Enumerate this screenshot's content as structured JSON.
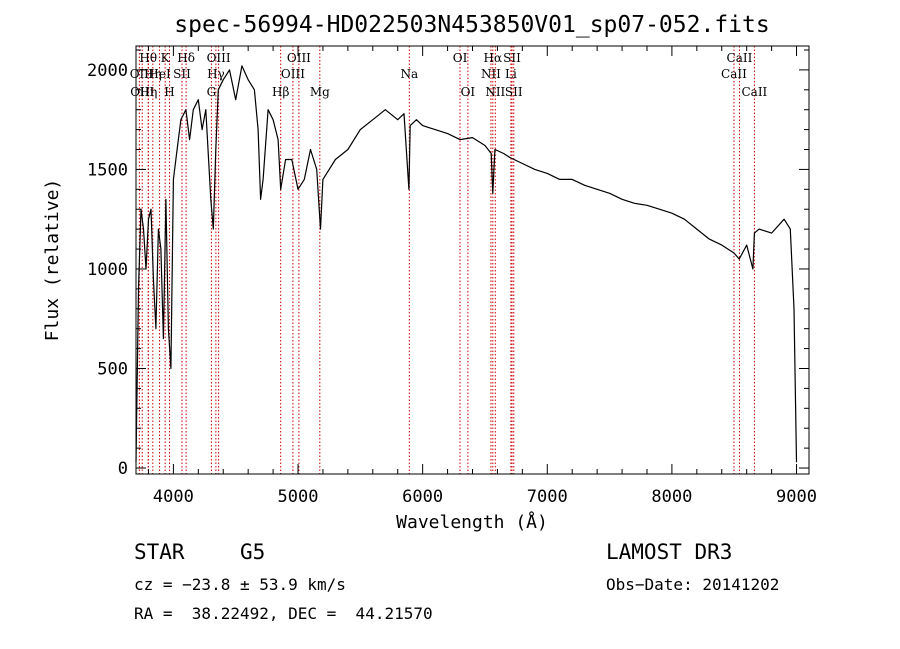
{
  "chart_data": {
    "type": "line",
    "title": "spec-56994-HD022503N453850V01_sp07-052.fits",
    "xlabel": "Wavelength (Å)",
    "ylabel": "Flux (relative)",
    "xlim": [
      3700,
      9100
    ],
    "ylim": [
      -30,
      2120
    ],
    "xticks": [
      4000,
      5000,
      6000,
      7000,
      8000,
      9000
    ],
    "yticks": [
      0,
      500,
      1000,
      1500,
      2000
    ],
    "series": [
      {
        "name": "flux",
        "color": "#000000",
        "x": [
          3700,
          3720,
          3740,
          3760,
          3780,
          3800,
          3820,
          3840,
          3860,
          3880,
          3900,
          3920,
          3940,
          3960,
          3980,
          4000,
          4030,
          4060,
          4100,
          4130,
          4160,
          4200,
          4230,
          4260,
          4300,
          4320,
          4340,
          4360,
          4400,
          4450,
          4500,
          4550,
          4600,
          4650,
          4680,
          4700,
          4720,
          4760,
          4800,
          4840,
          4861,
          4900,
          4950,
          5000,
          5050,
          5100,
          5150,
          5180,
          5200,
          5250,
          5300,
          5400,
          5500,
          5600,
          5700,
          5800,
          5850,
          5890,
          5900,
          5950,
          6000,
          6100,
          6200,
          6300,
          6400,
          6500,
          6550,
          6563,
          6580,
          6650,
          6700,
          6800,
          6900,
          7000,
          7100,
          7200,
          7300,
          7400,
          7500,
          7600,
          7700,
          7800,
          7900,
          8000,
          8100,
          8200,
          8300,
          8400,
          8498,
          8540,
          8600,
          8650,
          8662,
          8700,
          8800,
          8900,
          8950,
          8980,
          9000
        ],
        "values": [
          30,
          900,
          1300,
          1200,
          1000,
          1250,
          1300,
          950,
          700,
          1200,
          1100,
          650,
          1350,
          700,
          500,
          1450,
          1600,
          1750,
          1800,
          1650,
          1800,
          1850,
          1700,
          1800,
          1350,
          1200,
          1600,
          1900,
          1950,
          2000,
          1850,
          2020,
          1950,
          1900,
          1700,
          1350,
          1450,
          1800,
          1750,
          1650,
          1400,
          1550,
          1550,
          1400,
          1450,
          1600,
          1500,
          1200,
          1450,
          1500,
          1550,
          1600,
          1700,
          1750,
          1800,
          1750,
          1780,
          1400,
          1720,
          1750,
          1720,
          1700,
          1680,
          1650,
          1660,
          1620,
          1580,
          1380,
          1600,
          1580,
          1560,
          1530,
          1500,
          1480,
          1450,
          1450,
          1420,
          1400,
          1380,
          1350,
          1330,
          1320,
          1300,
          1280,
          1250,
          1200,
          1150,
          1120,
          1080,
          1050,
          1120,
          1000,
          1180,
          1200,
          1180,
          1250,
          1200,
          800,
          30
        ]
      }
    ],
    "lines": [
      {
        "label": "Hθ",
        "x": 3798,
        "row": 1
      },
      {
        "label": "OII",
        "x": 3727,
        "row": 2
      },
      {
        "label": "Hη",
        "x": 3835,
        "row": 2
      },
      {
        "label": "OIII",
        "x": 3750,
        "row": 3
      },
      {
        "label": "HeI",
        "x": 3889,
        "row": 2
      },
      {
        "label": "Hη",
        "x": 3800,
        "row": 3
      },
      {
        "label": "K",
        "x": 3934,
        "row": 1
      },
      {
        "label": "H",
        "x": 3969,
        "row": 3
      },
      {
        "label": "SII",
        "x": 4069,
        "row": 2
      },
      {
        "label": "Hδ",
        "x": 4102,
        "row": 1
      },
      {
        "label": "OIII",
        "x": 4363,
        "row": 1
      },
      {
        "label": "Hγ",
        "x": 4341,
        "row": 2
      },
      {
        "label": "G",
        "x": 4305,
        "row": 3
      },
      {
        "label": "Hβ",
        "x": 4861,
        "row": 3
      },
      {
        "label": "OIII",
        "x": 5007,
        "row": 1
      },
      {
        "label": "OIII",
        "x": 4959,
        "row": 2
      },
      {
        "label": "Mg",
        "x": 5175,
        "row": 3
      },
      {
        "label": "Na",
        "x": 5893,
        "row": 2
      },
      {
        "label": "OI",
        "x": 6300,
        "row": 1
      },
      {
        "label": "OI",
        "x": 6363,
        "row": 3
      },
      {
        "label": "Hα",
        "x": 6563,
        "row": 1
      },
      {
        "label": "NII",
        "x": 6548,
        "row": 2
      },
      {
        "label": "NII",
        "x": 6583,
        "row": 3
      },
      {
        "label": "SII",
        "x": 6717,
        "row": 1
      },
      {
        "label": "Li",
        "x": 6708,
        "row": 2
      },
      {
        "label": "SII",
        "x": 6731,
        "row": 3
      },
      {
        "label": "CaII",
        "x": 8542,
        "row": 1
      },
      {
        "label": "CaII",
        "x": 8498,
        "row": 2
      },
      {
        "label": "CaII",
        "x": 8662,
        "row": 3
      }
    ],
    "line_marker_color": "#cc0000"
  },
  "info": {
    "class_text": "STAR",
    "subclass_text": "G5",
    "cz_text": "cz = −23.8 ± 53.9 km/s",
    "radec_text": "RA =  38.22492, DEC =  44.21570",
    "survey_text": "LAMOST DR3",
    "obsdate_text": "Obs−Date: 20141202"
  }
}
